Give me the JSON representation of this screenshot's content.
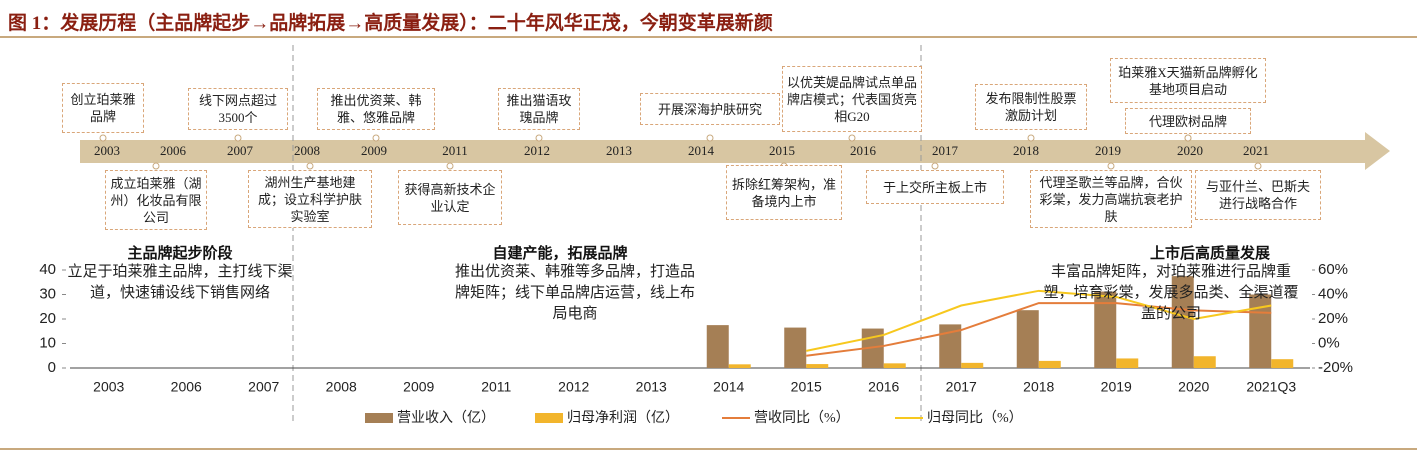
{
  "title": "图 1：发展历程（主品牌起步→品牌拓展→高质量发展）：二十年风华正茂，今朝变革展新颜",
  "timeline": {
    "years": [
      "2003",
      "2006",
      "2007",
      "2008",
      "2009",
      "2011",
      "2012",
      "2013",
      "2014",
      "2015",
      "2016",
      "2017",
      "2018",
      "2019",
      "2020",
      "2021"
    ],
    "above": [
      "创立珀莱雅品牌",
      "线下网点超过3500个",
      "推出优资莱、韩雅、悠雅品牌",
      "推出猫语玫瑰品牌",
      "开展深海护肤研究",
      "以优芙媞品牌试点单品牌店模式；代表国货亮相G20",
      "发布限制性股票激励计划",
      "珀莱雅X天猫新品牌孵化基地项目启动",
      "代理欧树品牌"
    ],
    "below": [
      "成立珀莱雅（湖州）化妆品有限公司",
      "湖州生产基地建成；设立科学护肤实验室",
      "获得高新技术企业认定",
      "拆除红筹架构，准备境内上市",
      "于上交所主板上市",
      "代理圣歌兰等品牌，合伙彩棠，发力高端抗衰老护肤",
      "与亚什兰、巴斯夫进行战略合作"
    ]
  },
  "phases": [
    {
      "title": "主品牌起步阶段",
      "text": "立足于珀莱雅主品牌，主打线下渠道，快速铺设线下销售网络"
    },
    {
      "title": "自建产能，拓展品牌",
      "text": "推出优资莱、韩雅等多品牌，打造品牌矩阵；线下单品牌店运营，线上布局电商"
    },
    {
      "title": "上市后高质量发展",
      "text": "丰富品牌矩阵，对珀莱雅进行品牌重塑，培育彩棠，发展多品类、全渠道覆盖的公司"
    }
  ],
  "chart_data": {
    "type": "bar_line",
    "categories": [
      "2003",
      "2006",
      "2007",
      "2008",
      "2009",
      "2011",
      "2012",
      "2013",
      "2014",
      "2015",
      "2016",
      "2017",
      "2018",
      "2019",
      "2020",
      "2021Q3"
    ],
    "series": [
      {
        "name": "营业收入（亿）",
        "kind": "bar",
        "color": "#a57f55",
        "values": [
          null,
          null,
          null,
          null,
          null,
          null,
          null,
          null,
          17.5,
          16.5,
          16.1,
          17.8,
          23.6,
          31.2,
          37.5,
          30
        ]
      },
      {
        "name": "归母净利润（亿）",
        "kind": "bar",
        "color": "#f2b52c",
        "values": [
          null,
          null,
          null,
          null,
          null,
          null,
          null,
          null,
          1.5,
          1.6,
          1.9,
          2.1,
          2.9,
          3.9,
          4.8,
          3.6
        ]
      },
      {
        "name": "营收同比（%）",
        "kind": "line",
        "axis": "y2",
        "color": "#e47d3b",
        "values": [
          null,
          null,
          null,
          null,
          null,
          null,
          null,
          null,
          null,
          -10,
          -2,
          11,
          33,
          33,
          27,
          25
        ]
      },
      {
        "name": "归母同比（%）",
        "kind": "line",
        "axis": "y2",
        "color": "#f7c81e",
        "values": [
          null,
          null,
          null,
          null,
          null,
          null,
          null,
          null,
          null,
          -6,
          7,
          31,
          43,
          38,
          20,
          31
        ]
      }
    ],
    "ylim": [
      0,
      40
    ],
    "yticks": [
      0,
      10,
      20,
      30,
      40
    ],
    "y2lim": [
      -20,
      60
    ],
    "y2ticks": [
      {
        "value": -20,
        "label": "-20%"
      },
      {
        "value": 0,
        "label": "0%"
      },
      {
        "value": 20,
        "label": "20%"
      },
      {
        "value": 40,
        "label": "40%"
      },
      {
        "value": 60,
        "label": "60%"
      }
    ]
  }
}
